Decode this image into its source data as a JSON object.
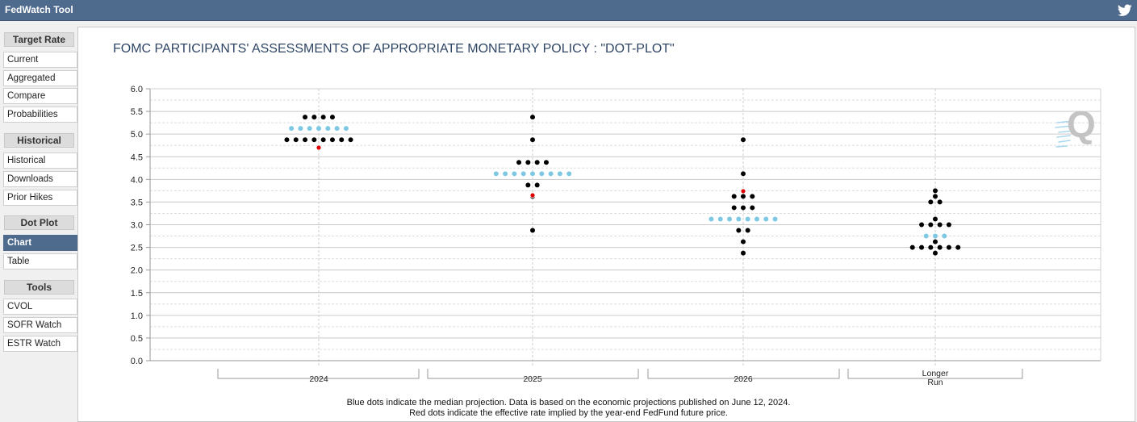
{
  "app": {
    "title": "FedWatch Tool"
  },
  "icons": {
    "twitter": "twitter-icon",
    "watermark": "quikstrike-q-logo"
  },
  "colors": {
    "header": "#4e6a8d",
    "median": "#7ec8e3",
    "participant": "#000000",
    "implied": "#e00000"
  },
  "sidebar": {
    "groups": [
      {
        "label": "Target Rate",
        "items": [
          {
            "label": "Current"
          },
          {
            "label": "Aggregated"
          },
          {
            "label": "Compare"
          },
          {
            "label": "Probabilities"
          }
        ]
      },
      {
        "label": "Historical",
        "items": [
          {
            "label": "Historical"
          },
          {
            "label": "Downloads"
          },
          {
            "label": "Prior Hikes"
          }
        ]
      },
      {
        "label": "Dot Plot",
        "items": [
          {
            "label": "Chart"
          },
          {
            "label": "Table"
          }
        ]
      },
      {
        "label": "Tools",
        "items": [
          {
            "label": "CVOL"
          },
          {
            "label": "SOFR Watch"
          },
          {
            "label": "ESTR Watch"
          }
        ]
      }
    ],
    "active": "Chart"
  },
  "chart_data": {
    "type": "scatter",
    "title": "FOMC PARTICIPANTS' ASSESSMENTS OF APPROPRIATE MONETARY POLICY : \"DOT-PLOT\"",
    "ylim": [
      0,
      6
    ],
    "yticks": [
      "0.0",
      "0.5",
      "1.0",
      "1.5",
      "2.0",
      "2.5",
      "3.0",
      "3.5",
      "4.0",
      "4.5",
      "5.0",
      "5.5",
      "6.0"
    ],
    "grid": true,
    "categories": [
      "2024",
      "2025",
      "2026",
      "Longer Run"
    ],
    "category_labels": [
      [
        "2024"
      ],
      [
        "2025"
      ],
      [
        "2026"
      ],
      [
        "Longer",
        "Run"
      ]
    ],
    "participants": [
      [
        {
          "y": 5.375,
          "n": 4
        },
        {
          "y": 4.875,
          "n": 8
        }
      ],
      [
        {
          "y": 5.375,
          "n": 1
        },
        {
          "y": 4.875,
          "n": 1
        },
        {
          "y": 4.375,
          "n": 4
        },
        {
          "y": 3.875,
          "n": 2
        },
        {
          "y": 3.625,
          "n": 1
        },
        {
          "y": 2.875,
          "n": 1
        }
      ],
      [
        {
          "y": 4.875,
          "n": 1
        },
        {
          "y": 4.125,
          "n": 1
        },
        {
          "y": 3.625,
          "n": 3
        },
        {
          "y": 3.375,
          "n": 3
        },
        {
          "y": 2.875,
          "n": 2
        },
        {
          "y": 2.625,
          "n": 1
        },
        {
          "y": 2.375,
          "n": 1
        }
      ],
      [
        {
          "y": 3.75,
          "n": 1
        },
        {
          "y": 3.625,
          "n": 1
        },
        {
          "y": 3.5,
          "n": 2
        },
        {
          "y": 3.125,
          "n": 1
        },
        {
          "y": 3.0,
          "n": 4
        },
        {
          "y": 2.625,
          "n": 1
        },
        {
          "y": 2.5,
          "n": 6
        },
        {
          "y": 2.375,
          "n": 1
        }
      ]
    ],
    "median": [
      {
        "y": 5.125,
        "n": 7
      },
      {
        "y": 4.125,
        "n": 9
      },
      {
        "y": 3.125,
        "n": 8
      },
      {
        "y": 2.75,
        "n": 3
      }
    ],
    "implied": [
      4.7,
      3.65,
      3.74,
      null
    ]
  },
  "footnote": {
    "line1": "Blue dots indicate the median projection. Data is based on the economic projections published on June 12, 2024.",
    "line2": "Red dots indicate the effective rate implied by the year-end FedFund future price."
  }
}
